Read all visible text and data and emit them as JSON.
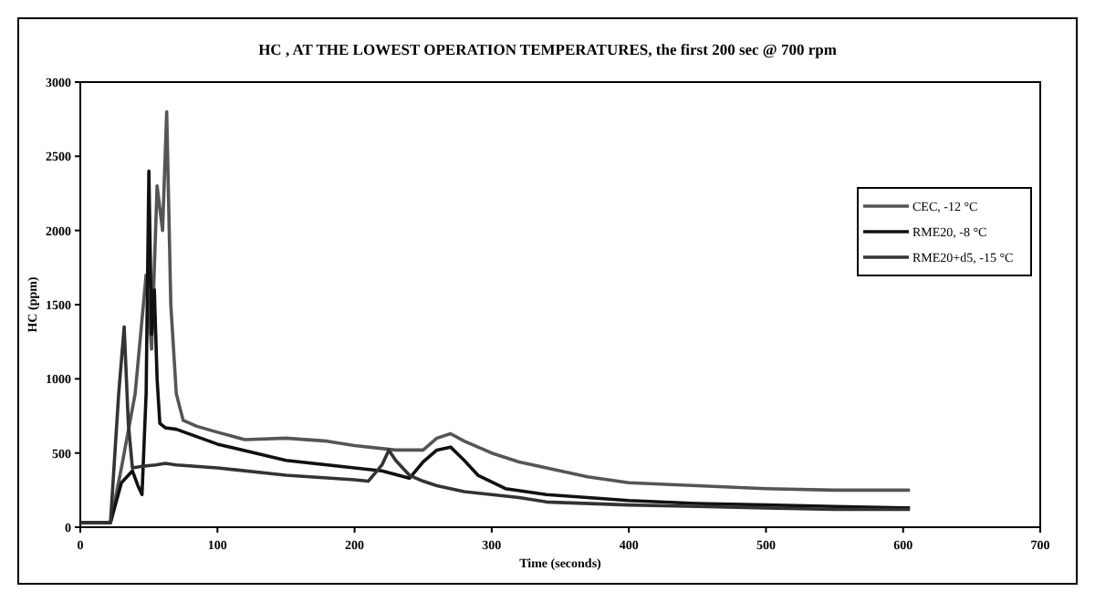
{
  "chart_data": {
    "type": "line",
    "title": "HC , AT THE LOWEST OPERATION TEMPERATURES, the first 200 sec @ 700 rpm",
    "xlabel": "Time (seconds)",
    "ylabel": "HC (ppm)",
    "xlim": [
      0,
      700
    ],
    "xticks": [
      0,
      100,
      200,
      300,
      400,
      500,
      600,
      700
    ],
    "ylim": [
      0,
      3000
    ],
    "yticks": [
      0,
      500,
      1000,
      1500,
      2000,
      2500,
      3000
    ],
    "grid": false,
    "legend": "right",
    "marker": "none",
    "line_style": "solid",
    "series": [
      {
        "name": "CEC, -12 °C",
        "color": "#555555",
        "x": [
          0,
          22,
          30,
          40,
          48,
          52,
          56,
          60,
          63,
          66,
          70,
          75,
          85,
          100,
          120,
          150,
          180,
          200,
          230,
          250,
          260,
          270,
          280,
          300,
          320,
          340,
          370,
          400,
          450,
          500,
          550,
          600,
          605
        ],
        "values": [
          30,
          30,
          400,
          900,
          1700,
          1200,
          2300,
          2000,
          2800,
          1500,
          900,
          720,
          680,
          640,
          590,
          600,
          580,
          550,
          520,
          520,
          600,
          630,
          580,
          500,
          440,
          400,
          340,
          300,
          280,
          260,
          250,
          250,
          250
        ]
      },
      {
        "name": "RME20, -8 °C",
        "color": "#111111",
        "x": [
          0,
          22,
          30,
          38,
          42,
          45,
          48,
          50,
          52,
          54,
          56,
          58,
          62,
          70,
          100,
          150,
          200,
          220,
          240,
          250,
          260,
          270,
          280,
          290,
          310,
          340,
          400,
          450,
          500,
          550,
          600,
          605
        ],
        "values": [
          30,
          30,
          300,
          380,
          280,
          220,
          900,
          2400,
          1300,
          1600,
          1000,
          700,
          670,
          660,
          560,
          450,
          400,
          380,
          330,
          440,
          520,
          540,
          450,
          350,
          260,
          220,
          180,
          160,
          150,
          140,
          130,
          130
        ]
      },
      {
        "name": "RME20+d5, -15 °C",
        "color": "#333333",
        "x": [
          0,
          22,
          28,
          32,
          35,
          38,
          45,
          55,
          62,
          70,
          100,
          150,
          200,
          210,
          220,
          225,
          230,
          240,
          250,
          260,
          280,
          300,
          320,
          340,
          400,
          450,
          500,
          550,
          600,
          605
        ],
        "values": [
          30,
          30,
          900,
          1350,
          700,
          400,
          410,
          420,
          430,
          420,
          400,
          350,
          320,
          310,
          420,
          520,
          450,
          350,
          310,
          280,
          240,
          220,
          200,
          170,
          150,
          140,
          130,
          120,
          120,
          120
        ]
      }
    ]
  }
}
